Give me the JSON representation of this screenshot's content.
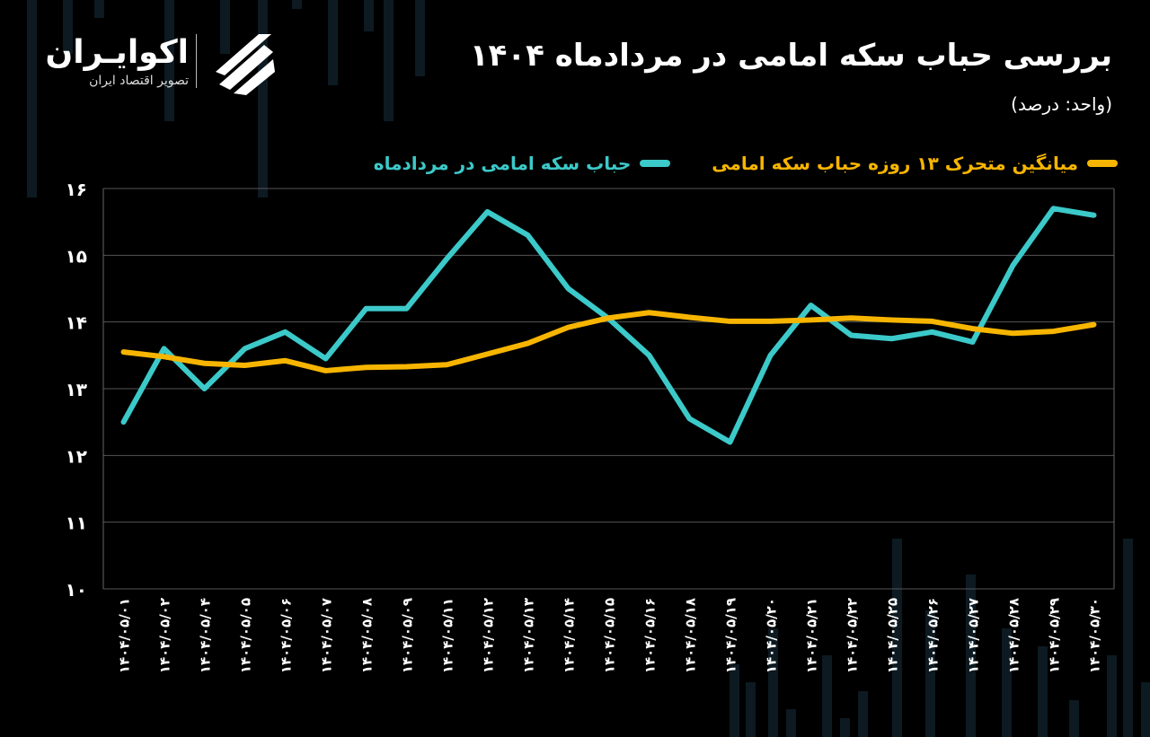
{
  "header": {
    "title": "بررسی حباب سکه امامی در مردادماه ۱۴۰۴",
    "subtitle": "(واحد: درصد)"
  },
  "logo": {
    "name": "اکوایـران",
    "tagline": "تصویر اقتصاد ایران"
  },
  "colors": {
    "bubble": "#3cc9c9",
    "moving_average": "#f7b500",
    "grid": "#555555",
    "background": "#000000"
  },
  "chart_data": {
    "type": "line",
    "categories": [
      "۱۴۰۴/۰۵/۰۱",
      "۱۴۰۴/۰۵/۰۲",
      "۱۴۰۴/۰۵/۰۴",
      "۱۴۰۴/۰۵/۰۵",
      "۱۴۰۴/۰۵/۰۶",
      "۱۴۰۴/۰۵/۰۷",
      "۱۴۰۴/۰۵/۰۸",
      "۱۴۰۴/۰۵/۰۹",
      "۱۴۰۴/۰۵/۱۱",
      "۱۴۰۴/۰۵/۱۲",
      "۱۴۰۴/۰۵/۱۳",
      "۱۴۰۴/۰۵/۱۴",
      "۱۴۰۴/۰۵/۱۵",
      "۱۴۰۴/۰۵/۱۶",
      "۱۴۰۴/۰۵/۱۸",
      "۱۴۰۴/۰۵/۱۹",
      "۱۴۰۴/۰۵/۲۰",
      "۱۴۰۴/۰۵/۲۱",
      "۱۴۰۴/۰۵/۲۲",
      "۱۴۰۴/۰۵/۲۵",
      "۱۴۰۴/۰۵/۲۶",
      "۱۴۰۴/۰۵/۲۷",
      "۱۴۰۴/۰۵/۲۸",
      "۱۴۰۴/۰۵/۲۹",
      "۱۴۰۴/۰۵/۳۰"
    ],
    "series": [
      {
        "name": "حباب سکه امامی در مردادماه",
        "color": "#3cc9c9",
        "values": [
          12.5,
          13.6,
          13.0,
          13.6,
          13.85,
          13.45,
          14.2,
          14.2,
          14.95,
          15.65,
          15.3,
          14.5,
          14.05,
          13.5,
          12.55,
          12.2,
          13.5,
          14.25,
          13.8,
          13.75,
          13.85,
          13.7,
          14.85,
          15.7,
          15.6
        ]
      },
      {
        "name": "میانگین متحرک ۱۳ روزه حباب سکه امامی",
        "color": "#f7b500",
        "values": [
          13.55,
          13.48,
          13.38,
          13.35,
          13.42,
          13.27,
          13.32,
          13.33,
          13.36,
          13.52,
          13.68,
          13.92,
          14.06,
          14.14,
          14.07,
          14.01,
          14.01,
          14.03,
          14.06,
          14.03,
          14.01,
          13.9,
          13.83,
          13.86,
          13.96
        ]
      }
    ],
    "ytick_labels": [
      "۱۰",
      "۱۱",
      "۱۲",
      "۱۳",
      "۱۴",
      "۱۵",
      "۱۶"
    ],
    "ylim": [
      10,
      16
    ],
    "grid": true,
    "legend_position": "top"
  }
}
